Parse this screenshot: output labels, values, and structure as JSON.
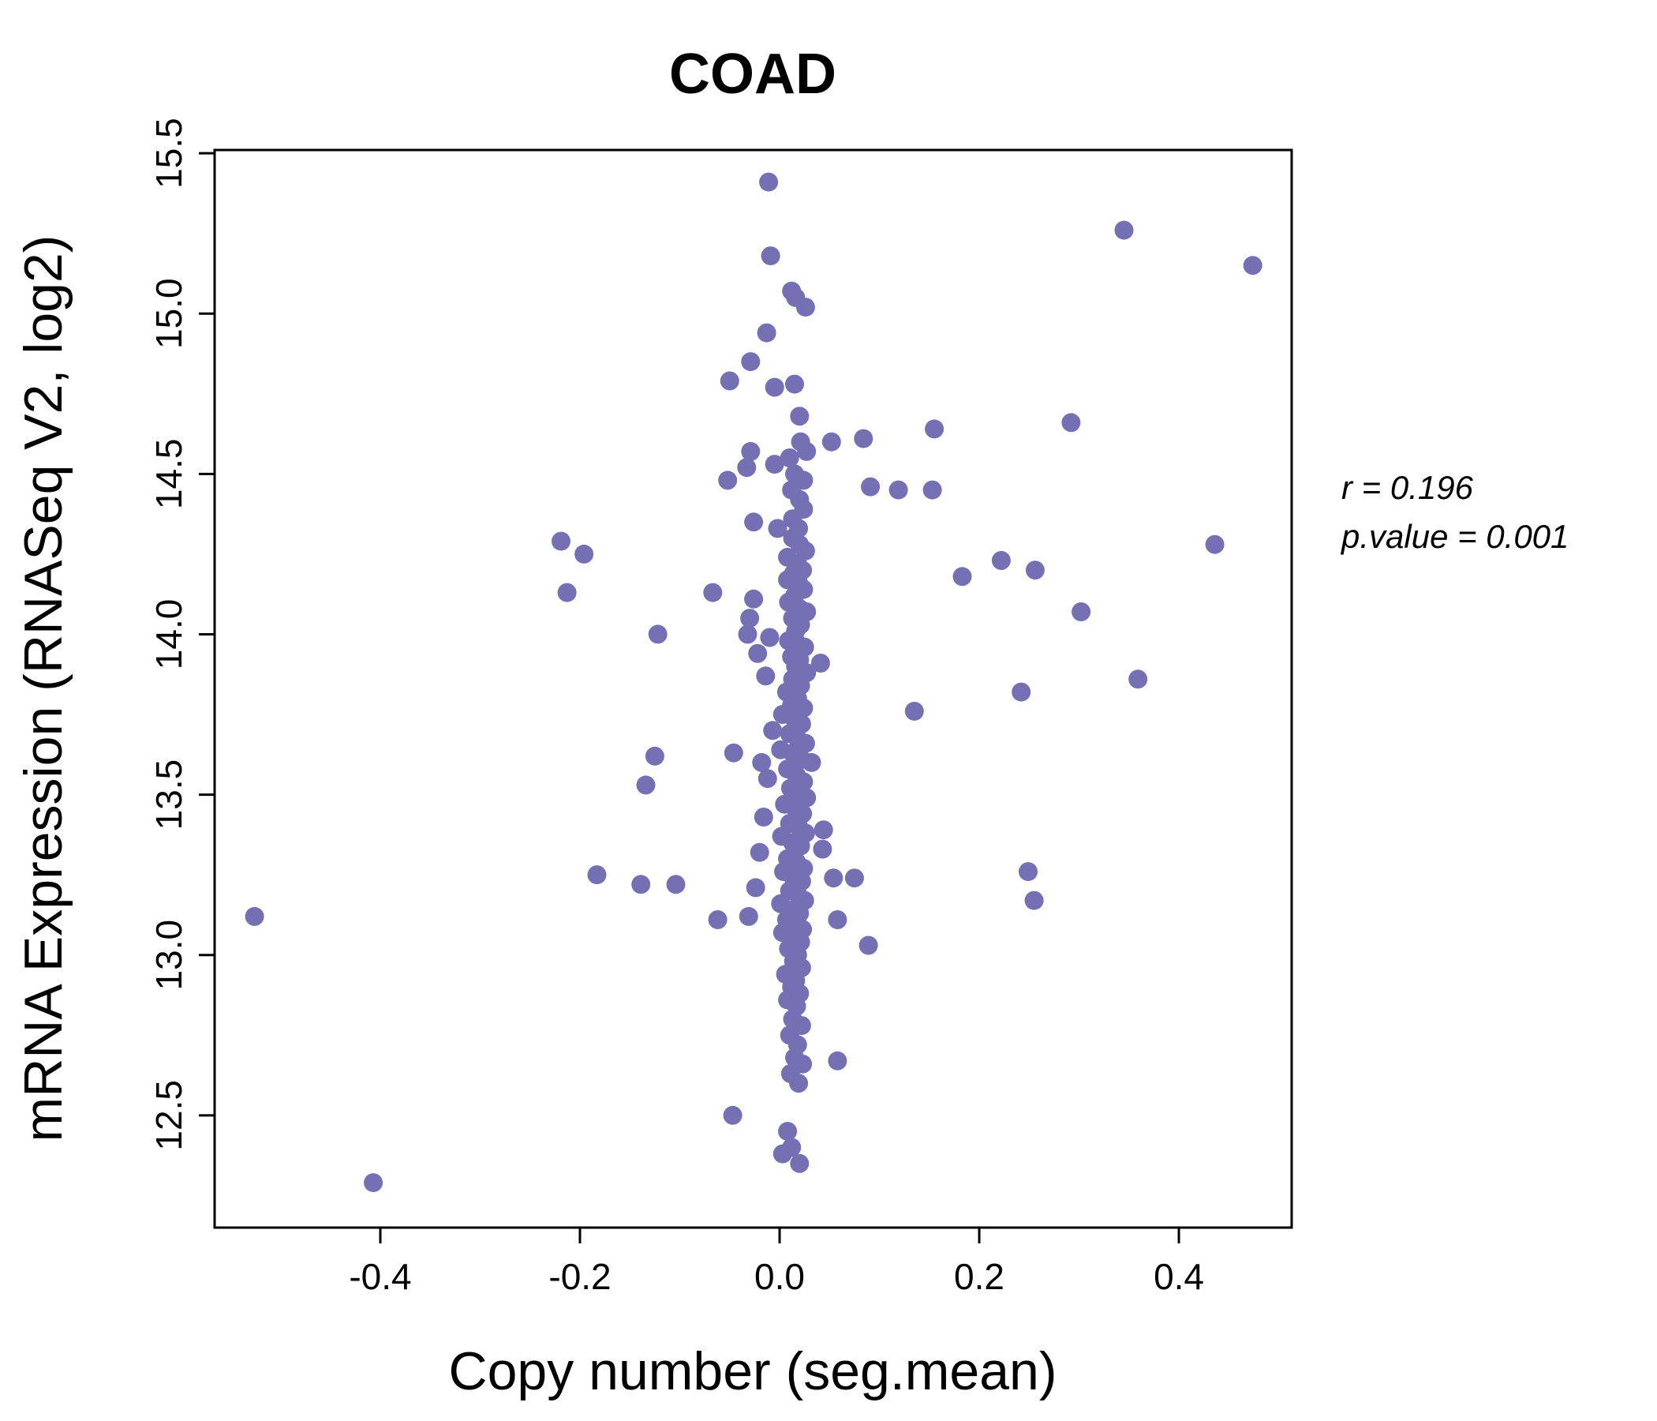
{
  "chart_data": {
    "type": "scatter",
    "title": "COAD",
    "xlabel": "Copy number (seg.mean)",
    "ylabel": "mRNA Expression (RNASeq V2, log2)",
    "annotation": {
      "line1": "r = 0.196",
      "line2": "p.value = 0.001"
    },
    "x_ticks": [
      -0.4,
      -0.2,
      0.0,
      0.2,
      0.4
    ],
    "x_tick_labels": [
      "-0.4",
      "-0.2",
      "0.0",
      "0.2",
      "0.4"
    ],
    "y_ticks": [
      12.5,
      13.0,
      13.5,
      14.0,
      14.5,
      15.0,
      15.5
    ],
    "y_tick_labels": [
      "12.5",
      "13.0",
      "13.5",
      "14.0",
      "14.5",
      "15.0",
      "15.5"
    ],
    "xlim": [
      -0.566,
      0.513
    ],
    "ylim": [
      12.15,
      15.51
    ],
    "grid": false,
    "legend_position": "none",
    "point_color": "#7570b3",
    "title_color": "#7570b3",
    "points": [
      [
        -0.526,
        13.12
      ],
      [
        -0.407,
        12.29
      ],
      [
        0.345,
        15.26
      ],
      [
        0.474,
        15.15
      ],
      [
        0.436,
        14.28
      ],
      [
        0.359,
        13.86
      ],
      [
        0.302,
        14.07
      ],
      [
        0.292,
        14.66
      ],
      [
        0.256,
        14.2
      ],
      [
        0.255,
        13.17
      ],
      [
        0.249,
        13.26
      ],
      [
        0.242,
        13.82
      ],
      [
        0.222,
        14.23
      ],
      [
        0.183,
        14.18
      ],
      [
        0.155,
        14.64
      ],
      [
        0.153,
        14.45
      ],
      [
        0.135,
        13.76
      ],
      [
        0.119,
        14.45
      ],
      [
        0.091,
        14.46
      ],
      [
        0.089,
        13.03
      ],
      [
        0.084,
        14.61
      ],
      [
        0.075,
        13.24
      ],
      [
        0.058,
        13.11
      ],
      [
        0.058,
        12.67
      ],
      [
        0.054,
        13.24
      ],
      [
        0.052,
        14.6
      ],
      [
        0.044,
        13.39
      ],
      [
        0.043,
        13.33
      ],
      [
        0.041,
        13.91
      ],
      [
        -0.219,
        14.29
      ],
      [
        -0.213,
        14.13
      ],
      [
        -0.196,
        14.25
      ],
      [
        -0.183,
        13.25
      ],
      [
        -0.139,
        13.22
      ],
      [
        -0.134,
        13.53
      ],
      [
        -0.125,
        13.62
      ],
      [
        -0.122,
        14.0
      ],
      [
        -0.104,
        13.22
      ],
      [
        -0.067,
        14.13
      ],
      [
        -0.062,
        13.11
      ],
      [
        -0.052,
        14.48
      ],
      [
        -0.05,
        14.79
      ],
      [
        -0.047,
        12.5
      ],
      [
        -0.046,
        13.63
      ],
      [
        -0.011,
        15.41
      ],
      [
        -0.009,
        15.18
      ],
      [
        0.012,
        15.07
      ],
      [
        0.016,
        15.05
      ],
      [
        0.026,
        15.02
      ],
      [
        -0.013,
        14.94
      ],
      [
        -0.029,
        14.85
      ],
      [
        -0.005,
        14.77
      ],
      [
        0.015,
        14.78
      ],
      [
        0.02,
        14.68
      ],
      [
        0.021,
        14.6
      ],
      [
        0.027,
        14.57
      ],
      [
        -0.029,
        14.57
      ],
      [
        -0.033,
        14.52
      ],
      [
        -0.005,
        14.53
      ],
      [
        0.01,
        14.55
      ],
      [
        0.015,
        14.5
      ],
      [
        0.024,
        14.48
      ],
      [
        0.012,
        14.45
      ],
      [
        0.02,
        14.42
      ],
      [
        0.024,
        14.39
      ],
      [
        0.013,
        14.36
      ],
      [
        -0.026,
        14.35
      ],
      [
        -0.002,
        14.33
      ],
      [
        0.019,
        14.33
      ],
      [
        0.013,
        14.3
      ],
      [
        0.02,
        14.28
      ],
      [
        0.026,
        14.26
      ],
      [
        0.008,
        14.24
      ],
      [
        0.018,
        14.22
      ],
      [
        0.023,
        14.2
      ],
      [
        0.014,
        14.19
      ],
      [
        0.008,
        14.17
      ],
      [
        0.019,
        14.16
      ],
      [
        0.024,
        14.14
      ],
      [
        0.015,
        14.12
      ],
      [
        -0.026,
        14.11
      ],
      [
        0.009,
        14.1
      ],
      [
        0.02,
        14.08
      ],
      [
        -0.03,
        14.05
      ],
      [
        0.027,
        14.07
      ],
      [
        0.013,
        14.05
      ],
      [
        0.021,
        14.03
      ],
      [
        0.016,
        14.01
      ],
      [
        -0.032,
        14.0
      ],
      [
        -0.01,
        13.99
      ],
      [
        0.009,
        13.98
      ],
      [
        0.018,
        13.97
      ],
      [
        0.025,
        13.96
      ],
      [
        -0.022,
        13.94
      ],
      [
        0.012,
        13.93
      ],
      [
        0.02,
        13.92
      ],
      [
        0.016,
        13.9
      ],
      [
        0.027,
        13.88
      ],
      [
        -0.014,
        13.87
      ],
      [
        0.013,
        13.86
      ],
      [
        0.021,
        13.84
      ],
      [
        0.007,
        13.82
      ],
      [
        0.018,
        13.8
      ],
      [
        0.012,
        13.78
      ],
      [
        0.024,
        13.77
      ],
      [
        0.003,
        13.75
      ],
      [
        0.014,
        13.74
      ],
      [
        0.022,
        13.72
      ],
      [
        -0.007,
        13.7
      ],
      [
        0.01,
        13.69
      ],
      [
        0.019,
        13.67
      ],
      [
        0.026,
        13.66
      ],
      [
        0.001,
        13.64
      ],
      [
        0.013,
        13.63
      ],
      [
        0.022,
        13.61
      ],
      [
        -0.018,
        13.6
      ],
      [
        0.032,
        13.6
      ],
      [
        0.008,
        13.58
      ],
      [
        0.017,
        13.56
      ],
      [
        -0.012,
        13.55
      ],
      [
        0.024,
        13.54
      ],
      [
        0.011,
        13.52
      ],
      [
        0.02,
        13.5
      ],
      [
        0.027,
        13.49
      ],
      [
        0.005,
        13.47
      ],
      [
        0.015,
        13.46
      ],
      [
        0.023,
        13.44
      ],
      [
        -0.016,
        13.43
      ],
      [
        0.01,
        13.41
      ],
      [
        0.019,
        13.4
      ],
      [
        0.026,
        13.38
      ],
      [
        0.002,
        13.37
      ],
      [
        0.013,
        13.35
      ],
      [
        0.021,
        13.34
      ],
      [
        -0.02,
        13.32
      ],
      [
        0.008,
        13.3
      ],
      [
        0.017,
        13.29
      ],
      [
        0.024,
        13.27
      ],
      [
        0.004,
        13.26
      ],
      [
        0.014,
        13.24
      ],
      [
        0.022,
        13.23
      ],
      [
        -0.024,
        13.21
      ],
      [
        0.01,
        13.2
      ],
      [
        0.018,
        13.19
      ],
      [
        0.025,
        13.17
      ],
      [
        0.001,
        13.16
      ],
      [
        0.012,
        13.14
      ],
      [
        0.02,
        13.13
      ],
      [
        -0.031,
        13.12
      ],
      [
        0.007,
        13.11
      ],
      [
        0.016,
        13.1
      ],
      [
        0.023,
        13.08
      ],
      [
        0.003,
        13.07
      ],
      [
        0.013,
        13.05
      ],
      [
        0.021,
        13.04
      ],
      [
        0.009,
        13.02
      ],
      [
        0.018,
        13.0
      ],
      [
        0.014,
        12.98
      ],
      [
        0.022,
        12.96
      ],
      [
        0.006,
        12.94
      ],
      [
        0.016,
        12.92
      ],
      [
        0.012,
        12.9
      ],
      [
        0.02,
        12.88
      ],
      [
        0.008,
        12.86
      ],
      [
        0.017,
        12.84
      ],
      [
        0.013,
        12.8
      ],
      [
        0.022,
        12.78
      ],
      [
        0.01,
        12.75
      ],
      [
        0.018,
        12.72
      ],
      [
        0.015,
        12.68
      ],
      [
        0.023,
        12.66
      ],
      [
        0.011,
        12.63
      ],
      [
        0.019,
        12.6
      ],
      [
        0.008,
        12.45
      ],
      [
        0.012,
        12.4
      ],
      [
        0.003,
        12.38
      ],
      [
        0.02,
        12.35
      ]
    ]
  }
}
